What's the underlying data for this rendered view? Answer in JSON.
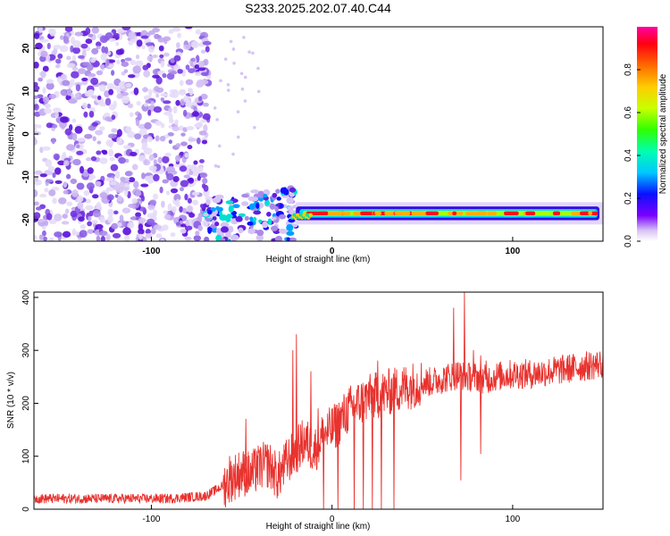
{
  "title": "S233.2025.202.07.40.C44",
  "colors": {
    "snr_line": "#e8322e",
    "background": "#ffffff",
    "axis": "#000000"
  },
  "chart_data": [
    {
      "type": "heatmap",
      "xlabel": "Height of straight line (km)",
      "ylabel": "Frequency (Hz)",
      "xlim": [
        -165,
        150
      ],
      "ylim": [
        -25,
        25
      ],
      "x_ticks": [
        "-100",
        "0",
        "100"
      ],
      "y_ticks": [
        "20",
        "10",
        "0",
        "-10",
        "-20"
      ],
      "colorbar": {
        "label": "Normalized spectral amplitude",
        "range": [
          0,
          1
        ],
        "ticks": [
          "0.0",
          "0.2",
          "0.4",
          "0.6",
          "0.8"
        ],
        "colormap": "rainbow"
      },
      "features": [
        {
          "description_x_range": [
            -165,
            -68
          ],
          "frequency_range": [
            -25,
            25
          ],
          "amplitude": 0.1
        },
        {
          "description_x_range": [
            -70,
            -20
          ],
          "frequency_range": [
            -25,
            -12
          ],
          "amplitude": 0.3
        },
        {
          "description_x_range": [
            -20,
            150
          ],
          "frequency_center": -18.5,
          "amplitude": 0.85
        }
      ]
    },
    {
      "type": "line",
      "xlabel": "Height of straight line (km)",
      "ylabel": "SNR (10 * v/v)",
      "xlim": [
        -165,
        150
      ],
      "ylim": [
        0,
        410
      ],
      "x_ticks": [
        "-100",
        "0",
        "100"
      ],
      "y_ticks": [
        "0",
        "100",
        "200",
        "300",
        "400"
      ],
      "series": [
        {
          "x": [
            -165,
            -150,
            -130,
            -110,
            -90,
            -70,
            -60,
            -55,
            -50,
            -45,
            -40,
            -35,
            -30,
            -25,
            -20,
            -15,
            -10,
            -5,
            0,
            5,
            10,
            15,
            20,
            25,
            30,
            35,
            40,
            45,
            50,
            55,
            60,
            65,
            70,
            75,
            80,
            85,
            90,
            100,
            110,
            120,
            130,
            140,
            150
          ],
          "values": [
            20,
            20,
            20,
            20,
            20,
            25,
            45,
            60,
            70,
            65,
            80,
            85,
            60,
            90,
            110,
            130,
            110,
            140,
            150,
            170,
            190,
            200,
            210,
            215,
            220,
            225,
            230,
            235,
            240,
            240,
            245,
            250,
            255,
            250,
            250,
            245,
            250,
            255,
            255,
            260,
            265,
            270,
            275
          ],
          "spikes": [
            {
              "x": -57,
              "y": 100
            },
            {
              "x": -48,
              "y": 170
            },
            {
              "x": -42,
              "y": 110
            },
            {
              "x": -22,
              "y": 300
            },
            {
              "x": -20,
              "y": 330
            },
            {
              "x": -12,
              "y": 260
            },
            {
              "x": -8,
              "y": 190
            },
            {
              "x": 20,
              "y": 240
            },
            {
              "x": 25,
              "y": 280
            },
            {
              "x": 67,
              "y": 380
            },
            {
              "x": 73,
              "y": 410
            },
            {
              "x": 78,
              "y": 300
            },
            {
              "x": 82,
              "y": 290
            },
            {
              "x": 85,
              "y": 280
            }
          ],
          "dips": [
            {
              "x": -5,
              "y": 0
            },
            {
              "x": 3,
              "y": 0
            },
            {
              "x": 12,
              "y": 0
            },
            {
              "x": 17,
              "y": 0
            },
            {
              "x": 22,
              "y": 0
            },
            {
              "x": 27,
              "y": 0
            },
            {
              "x": 34,
              "y": 0
            },
            {
              "x": 71,
              "y": 55
            },
            {
              "x": 82,
              "y": 105
            }
          ]
        }
      ]
    }
  ]
}
